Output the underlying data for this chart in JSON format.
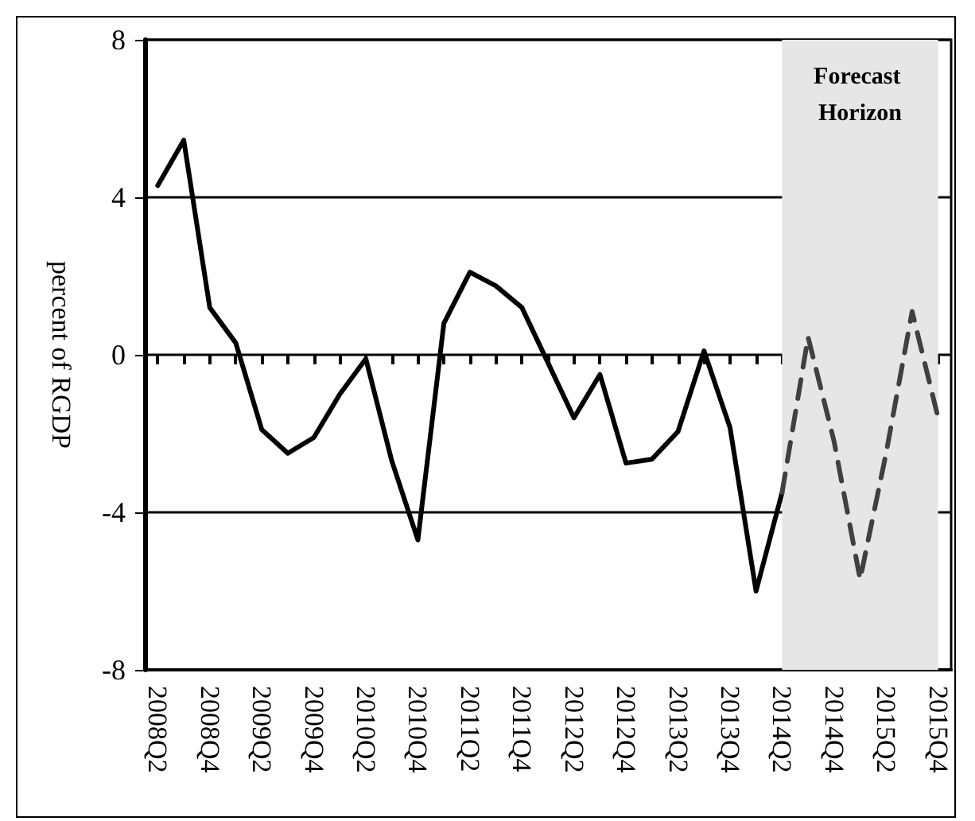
{
  "chart_data": {
    "type": "line",
    "ylabel": "percent of RGDP",
    "categories": [
      "2008Q2",
      null,
      "2008Q4",
      null,
      "2009Q2",
      null,
      "2009Q4",
      null,
      "2010Q2",
      null,
      "2010Q4",
      null,
      "2011Q2",
      null,
      "2011Q4",
      null,
      "2012Q2",
      null,
      "2012Q4",
      null,
      "2013Q2",
      null,
      "2013Q4",
      null,
      "2014Q2",
      null,
      "2014Q4",
      null,
      "2015Q2",
      null,
      "2015Q4"
    ],
    "series": [
      {
        "color": "#000000",
        "line_style": "solid",
        "values": [
          4.3,
          5.45,
          1.2,
          0.3,
          -1.9,
          -2.5,
          -2.1,
          -1.0,
          -0.1,
          -2.7,
          -4.7,
          0.8,
          2.1,
          1.75,
          1.2,
          -0.2,
          -1.6,
          -0.5,
          -2.75,
          -2.65,
          -1.95,
          0.1,
          -1.85,
          -6.0,
          -3.5,
          null,
          null,
          null,
          null,
          null,
          null
        ]
      },
      {
        "color": "#404040",
        "line_style": "dashed",
        "values": [
          null,
          null,
          null,
          null,
          null,
          null,
          null,
          null,
          null,
          null,
          null,
          null,
          null,
          null,
          null,
          null,
          null,
          null,
          null,
          null,
          null,
          null,
          null,
          null,
          -3.5,
          0.45,
          -2.2,
          -5.7,
          -2.5,
          1.1,
          -1.6
        ]
      }
    ],
    "bands": [
      {
        "axis": "x",
        "from": "2014Q2",
        "to": "2015Q4",
        "label": "Forecast Horizon",
        "color": "#e6e6e6"
      }
    ],
    "ylim": [
      -8,
      8
    ],
    "yticks": [
      -8,
      -4,
      0,
      4,
      8
    ],
    "grid": "y",
    "marker": "none"
  }
}
